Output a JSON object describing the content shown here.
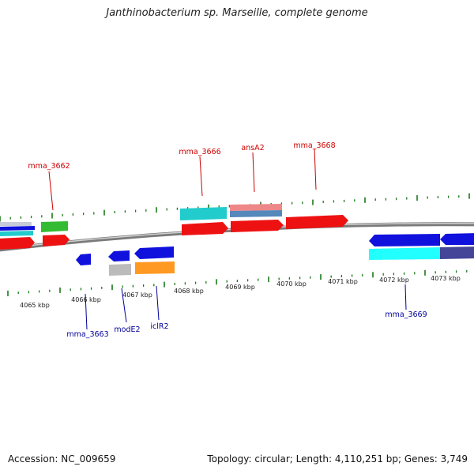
{
  "map": {
    "title": "Janthinobacterium sp. Marseille, complete genome",
    "accession_text": "Accession: NC_009659",
    "summary_text": "Topology: circular; Length: 4,110,251 bp; Genes: 3,749",
    "colors": {
      "backbone": "#8a8a8a",
      "tick": "#1a7a1a",
      "label_forward": "#cc0000",
      "label_reverse": "#000099",
      "red": "#ee1111",
      "blue": "#1111dd",
      "cyan": "#22cccc",
      "green": "#33bb33",
      "orange": "#ff9922",
      "silver": "#bbbbbb",
      "salmon": "#ee8888",
      "steel": "#5588bb",
      "navy": "#444499"
    },
    "tick_labels": [
      "4065 kbp",
      "4066 kbp",
      "4067 kbp",
      "4068 kbp",
      "4069 kbp",
      "4070 kbp",
      "4071 kbp",
      "4072 kbp",
      "4073 kbp"
    ],
    "gene_labels": {
      "forward": [
        "mma_3662",
        "mma_3666",
        "ansA2",
        "mma_3668"
      ],
      "reverse": [
        "mma_3663",
        "modE2",
        "iclR2",
        "mma_3669"
      ]
    }
  }
}
